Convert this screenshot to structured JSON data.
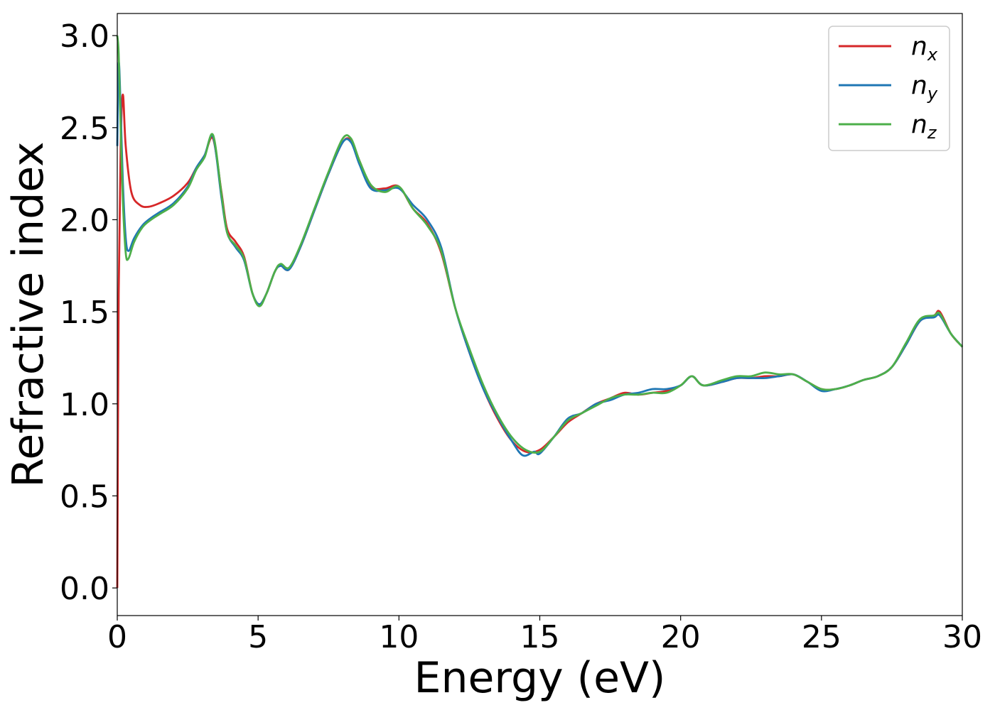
{
  "chart_data": {
    "type": "line",
    "title": "",
    "xlabel": "Energy (eV)",
    "ylabel": "Refractive index",
    "xlim": [
      0,
      30
    ],
    "ylim": [
      -0.15,
      3.12
    ],
    "xticks": [
      0,
      5,
      10,
      15,
      20,
      25,
      30
    ],
    "xtick_labels": [
      "0",
      "5",
      "10",
      "15",
      "20",
      "25",
      "30"
    ],
    "yticks": [
      0.0,
      0.5,
      1.0,
      1.5,
      2.0,
      2.5,
      3.0
    ],
    "ytick_labels": [
      "0.0",
      "0.5",
      "1.0",
      "1.5",
      "2.0",
      "2.5",
      "3.0"
    ],
    "grid": false,
    "legend_position": "top-right",
    "series": [
      {
        "name": "n_x",
        "label_main": "n",
        "label_sub": "x",
        "color": "#d62728",
        "x": [
          0,
          0.05,
          0.12,
          0.2,
          0.3,
          0.5,
          0.8,
          1.1,
          1.5,
          2.0,
          2.5,
          2.8,
          3.1,
          3.4,
          3.7,
          3.9,
          4.2,
          4.5,
          4.8,
          5.05,
          5.3,
          5.6,
          5.8,
          6.1,
          6.5,
          7.0,
          7.5,
          8.0,
          8.3,
          8.6,
          9.0,
          9.5,
          10.0,
          10.5,
          11.0,
          11.5,
          12.0,
          12.5,
          13.0,
          13.5,
          14.0,
          14.5,
          15.0,
          15.5,
          16.0,
          16.5,
          17.0,
          17.5,
          18.0,
          18.5,
          19.0,
          19.5,
          20.0,
          20.4,
          20.8,
          21.5,
          22.0,
          22.5,
          23.0,
          23.5,
          24.0,
          24.5,
          25.0,
          25.5,
          26.0,
          26.5,
          27.0,
          27.5,
          28.0,
          28.5,
          29.0,
          29.2,
          29.6,
          30.0
        ],
        "y": [
          0.0,
          1.6,
          2.4,
          2.68,
          2.4,
          2.15,
          2.08,
          2.07,
          2.09,
          2.13,
          2.2,
          2.28,
          2.35,
          2.44,
          2.15,
          1.95,
          1.88,
          1.8,
          1.6,
          1.54,
          1.6,
          1.72,
          1.75,
          1.73,
          1.85,
          2.05,
          2.25,
          2.42,
          2.43,
          2.32,
          2.18,
          2.17,
          2.18,
          2.06,
          1.98,
          1.82,
          1.52,
          1.28,
          1.08,
          0.92,
          0.8,
          0.74,
          0.75,
          0.82,
          0.9,
          0.95,
          1.0,
          1.03,
          1.06,
          1.05,
          1.06,
          1.07,
          1.1,
          1.15,
          1.1,
          1.12,
          1.14,
          1.14,
          1.15,
          1.15,
          1.16,
          1.12,
          1.08,
          1.08,
          1.1,
          1.13,
          1.15,
          1.2,
          1.32,
          1.45,
          1.48,
          1.5,
          1.38,
          1.31
        ]
      },
      {
        "name": "n_y",
        "label_main": "n",
        "label_sub": "y",
        "color": "#1f77b4",
        "x": [
          0,
          0.05,
          0.12,
          0.2,
          0.3,
          0.4,
          0.6,
          0.9,
          1.2,
          1.5,
          2.0,
          2.5,
          2.8,
          3.1,
          3.4,
          3.7,
          3.9,
          4.2,
          4.5,
          4.8,
          5.05,
          5.3,
          5.6,
          5.8,
          6.1,
          6.5,
          7.0,
          7.5,
          8.0,
          8.3,
          8.6,
          9.0,
          9.5,
          10.0,
          10.5,
          11.0,
          11.5,
          12.0,
          12.5,
          13.0,
          13.5,
          14.0,
          14.4,
          14.8,
          15.0,
          15.5,
          16.0,
          16.5,
          17.0,
          17.5,
          18.0,
          18.5,
          19.0,
          19.5,
          20.0,
          20.4,
          20.8,
          21.5,
          22.0,
          22.5,
          23.0,
          23.5,
          24.0,
          24.5,
          25.0,
          25.5,
          26.0,
          26.5,
          27.0,
          27.5,
          28.0,
          28.5,
          29.0,
          29.2,
          29.6,
          30.0
        ],
        "y": [
          2.4,
          2.85,
          2.6,
          2.2,
          1.9,
          1.83,
          1.9,
          1.97,
          2.01,
          2.04,
          2.09,
          2.18,
          2.28,
          2.35,
          2.45,
          2.12,
          1.93,
          1.85,
          1.78,
          1.6,
          1.54,
          1.6,
          1.72,
          1.75,
          1.73,
          1.85,
          2.05,
          2.25,
          2.42,
          2.42,
          2.3,
          2.17,
          2.16,
          2.17,
          2.08,
          2.0,
          1.85,
          1.52,
          1.28,
          1.08,
          0.93,
          0.8,
          0.72,
          0.74,
          0.73,
          0.82,
          0.92,
          0.95,
          1.0,
          1.02,
          1.05,
          1.06,
          1.08,
          1.08,
          1.1,
          1.15,
          1.1,
          1.12,
          1.14,
          1.14,
          1.14,
          1.15,
          1.16,
          1.12,
          1.07,
          1.08,
          1.1,
          1.13,
          1.15,
          1.2,
          1.32,
          1.45,
          1.47,
          1.48,
          1.38,
          1.31
        ]
      },
      {
        "name": "n_z",
        "label_main": "n",
        "label_sub": "z",
        "color": "#4daf4a",
        "x": [
          0,
          0.05,
          0.12,
          0.2,
          0.3,
          0.4,
          0.6,
          0.9,
          1.2,
          1.5,
          2.0,
          2.5,
          2.8,
          3.1,
          3.4,
          3.7,
          3.9,
          4.2,
          4.5,
          4.8,
          5.05,
          5.3,
          5.6,
          5.8,
          6.1,
          6.5,
          7.0,
          7.5,
          8.0,
          8.3,
          8.6,
          9.0,
          9.5,
          10.0,
          10.5,
          11.0,
          11.5,
          12.0,
          12.5,
          13.0,
          13.5,
          14.0,
          14.5,
          15.0,
          15.5,
          16.0,
          16.5,
          17.0,
          17.5,
          18.0,
          18.5,
          19.0,
          19.5,
          20.0,
          20.4,
          20.8,
          21.5,
          22.0,
          22.5,
          23.0,
          23.5,
          24.0,
          24.5,
          25.0,
          25.5,
          26.0,
          26.5,
          27.0,
          27.5,
          28.0,
          28.5,
          29.0,
          29.2,
          29.6,
          30.0
        ],
        "y": [
          3.0,
          2.9,
          2.5,
          2.1,
          1.82,
          1.79,
          1.88,
          1.96,
          2.0,
          2.03,
          2.08,
          2.17,
          2.27,
          2.34,
          2.46,
          2.14,
          1.93,
          1.86,
          1.79,
          1.6,
          1.53,
          1.6,
          1.72,
          1.76,
          1.74,
          1.86,
          2.06,
          2.26,
          2.44,
          2.44,
          2.32,
          2.19,
          2.15,
          2.18,
          2.06,
          1.97,
          1.83,
          1.52,
          1.3,
          1.1,
          0.94,
          0.82,
          0.75,
          0.74,
          0.82,
          0.91,
          0.95,
          0.99,
          1.03,
          1.05,
          1.05,
          1.06,
          1.06,
          1.1,
          1.15,
          1.1,
          1.13,
          1.15,
          1.15,
          1.17,
          1.16,
          1.16,
          1.12,
          1.08,
          1.08,
          1.1,
          1.13,
          1.15,
          1.2,
          1.33,
          1.46,
          1.48,
          1.49,
          1.38,
          1.31
        ]
      }
    ]
  }
}
